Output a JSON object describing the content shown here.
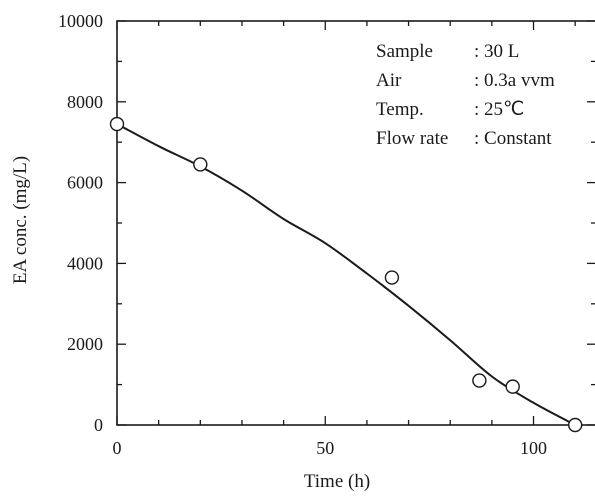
{
  "chart_data": {
    "type": "scatter",
    "xlabel": "Time (h)",
    "ylabel": "EA conc. (mg/L)",
    "xlim": [
      0,
      115
    ],
    "ylim": [
      0,
      10000
    ],
    "x_ticks": [
      0,
      50,
      100
    ],
    "x_minor_ticks": [
      10,
      20,
      30,
      40,
      60,
      70,
      80,
      90,
      110
    ],
    "y_ticks": [
      0,
      2000,
      4000,
      6000,
      8000,
      10000
    ],
    "y_minor_ticks": [
      1000,
      3000,
      5000,
      7000,
      9000
    ],
    "grid": false,
    "series": [
      {
        "marker": "open-circle",
        "x": [
          0,
          20,
          66,
          87,
          95,
          110
        ],
        "y": [
          7450,
          6450,
          3650,
          1100,
          950,
          0
        ]
      }
    ],
    "fit_curve": {
      "x": [
        0,
        10,
        20,
        30,
        40,
        50,
        60,
        70,
        80,
        90,
        100,
        110
      ],
      "y": [
        7450,
        6900,
        6400,
        5800,
        5100,
        4500,
        3750,
        2950,
        2100,
        1200,
        550,
        0
      ]
    },
    "annotation": {
      "lines": [
        {
          "key": "Sample",
          "value": ": 30 L"
        },
        {
          "key": "Air",
          "value": ": 0.3a vvm"
        },
        {
          "key": "Temp.",
          "value": ": 25℃"
        },
        {
          "key": "Flow rate",
          "value": ": Constant"
        }
      ]
    },
    "colors": {
      "ink": "#1a1a1a",
      "background": "#ffffff"
    }
  }
}
